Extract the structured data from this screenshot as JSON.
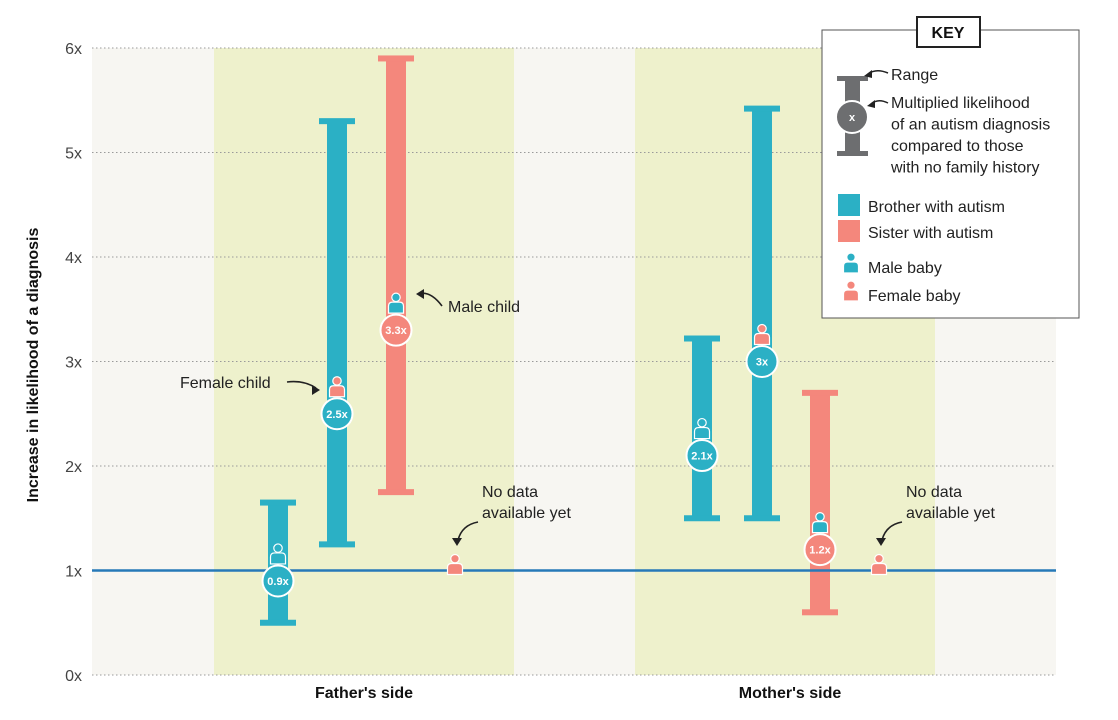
{
  "colors": {
    "brother": "#2bb0c5",
    "sister": "#f4877c",
    "baseline": "#2679b8",
    "group_bg": "#eef1cc",
    "outer_bg": "#f7f6f2",
    "range_icon": "#6d6e70"
  },
  "chart_data": {
    "type": "range-dot",
    "ylabel": "Increase in likelihood of a diagnosis",
    "ylim": [
      0,
      6
    ],
    "y_ticks": [
      "0x",
      "1x",
      "2x",
      "3x",
      "4x",
      "5x",
      "6x"
    ],
    "baseline": 1,
    "groups": [
      "Father's side",
      "Mother's side"
    ],
    "series": [
      {
        "group": "Father's side",
        "sibling": "brother",
        "child": "male",
        "value": 0.9,
        "label": "0.9x",
        "low": 0.5,
        "high": 1.65
      },
      {
        "group": "Father's side",
        "sibling": "brother",
        "child": "female",
        "value": 2.5,
        "label": "2.5x",
        "low": 1.25,
        "high": 5.3
      },
      {
        "group": "Father's side",
        "sibling": "sister",
        "child": "male",
        "value": 3.3,
        "label": "3.3x",
        "low": 1.75,
        "high": 5.9
      },
      {
        "group": "Father's side",
        "sibling": "sister",
        "child": "female",
        "value": null,
        "label": ""
      },
      {
        "group": "Mother's side",
        "sibling": "brother",
        "child": "male",
        "value": 2.1,
        "label": "2.1x",
        "low": 1.5,
        "high": 3.22
      },
      {
        "group": "Mother's side",
        "sibling": "brother",
        "child": "female",
        "value": 3.0,
        "label": "3x",
        "low": 1.5,
        "high": 5.42
      },
      {
        "group": "Mother's side",
        "sibling": "sister",
        "child": "male",
        "value": 1.2,
        "label": "1.2x",
        "low": 0.6,
        "high": 2.7
      },
      {
        "group": "Mother's side",
        "sibling": "sister",
        "child": "female",
        "value": null,
        "label": ""
      }
    ],
    "annotations": {
      "male_child": "Male child",
      "female_child": "Female child",
      "no_data_line1": "No data",
      "no_data_line2": "available yet"
    },
    "key": {
      "title": "KEY",
      "range": "Range",
      "multiplied": [
        "Multiplied likelihood",
        "of an autism diagnosis",
        "compared to those",
        "with no family history"
      ],
      "marker_symbol": "x",
      "brother": "Brother with autism",
      "sister": "Sister with autism",
      "male_baby": "Male baby",
      "female_baby": "Female baby"
    }
  }
}
